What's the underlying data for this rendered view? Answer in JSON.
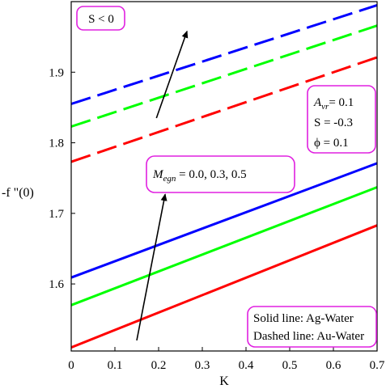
{
  "chart_data": {
    "type": "line",
    "xlabel": "K",
    "ylabel": "-f \"(0)",
    "xlim": [
      0,
      0.7
    ],
    "ylim": [
      1.505,
      2.0
    ],
    "xticks": [
      "0",
      "0.1",
      "0.2",
      "0.3",
      "0.4",
      "0.5",
      "0.6",
      "0.7"
    ],
    "yticks": [
      {
        "value": 1.6,
        "label": "1.6"
      },
      {
        "value": 1.7,
        "label": "1.7"
      },
      {
        "value": 1.8,
        "label": "1.8"
      },
      {
        "value": 1.9,
        "label": "1.9"
      }
    ],
    "grid": false,
    "series": [
      {
        "color": "#ff0000",
        "style": "solid",
        "x": [
          0,
          0.7
        ],
        "y": [
          1.51,
          1.683
        ]
      },
      {
        "color": "#00ff00",
        "style": "solid",
        "x": [
          0,
          0.7
        ],
        "y": [
          1.57,
          1.737
        ]
      },
      {
        "color": "#0000ff",
        "style": "solid",
        "x": [
          0,
          0.7
        ],
        "y": [
          1.609,
          1.771
        ]
      },
      {
        "color": "#ff0000",
        "style": "dashed",
        "x": [
          0,
          0.7
        ],
        "y": [
          1.773,
          1.921
        ]
      },
      {
        "color": "#00ff00",
        "style": "dashed",
        "x": [
          0,
          0.7
        ],
        "y": [
          1.823,
          1.966
        ]
      },
      {
        "color": "#0000ff",
        "style": "dashed",
        "x": [
          0,
          0.7
        ],
        "y": [
          1.855,
          1.995
        ]
      }
    ],
    "arrows": [
      {
        "from": [
          0.15,
          1.52
        ],
        "to": [
          0.215,
          1.727
        ]
      },
      {
        "from": [
          0.195,
          1.835
        ],
        "to": [
          0.265,
          1.958
        ]
      }
    ],
    "annotations": {
      "sign": "S < 0",
      "params": [
        "= 0.1",
        "S  = -0.3",
        "ϕ    = 0.1"
      ],
      "param_symbol": "A",
      "param_sub": "vr",
      "megn_symbol": "M",
      "megn_sub": "egn",
      "megn_values": " = 0.0, 0.3, 0.5",
      "legend": [
        "Solid line:    Ag-Water",
        "Dashed line: Au-Water"
      ]
    },
    "colors": {
      "frame": "#000000",
      "annotation_border": "#e020e0"
    }
  }
}
